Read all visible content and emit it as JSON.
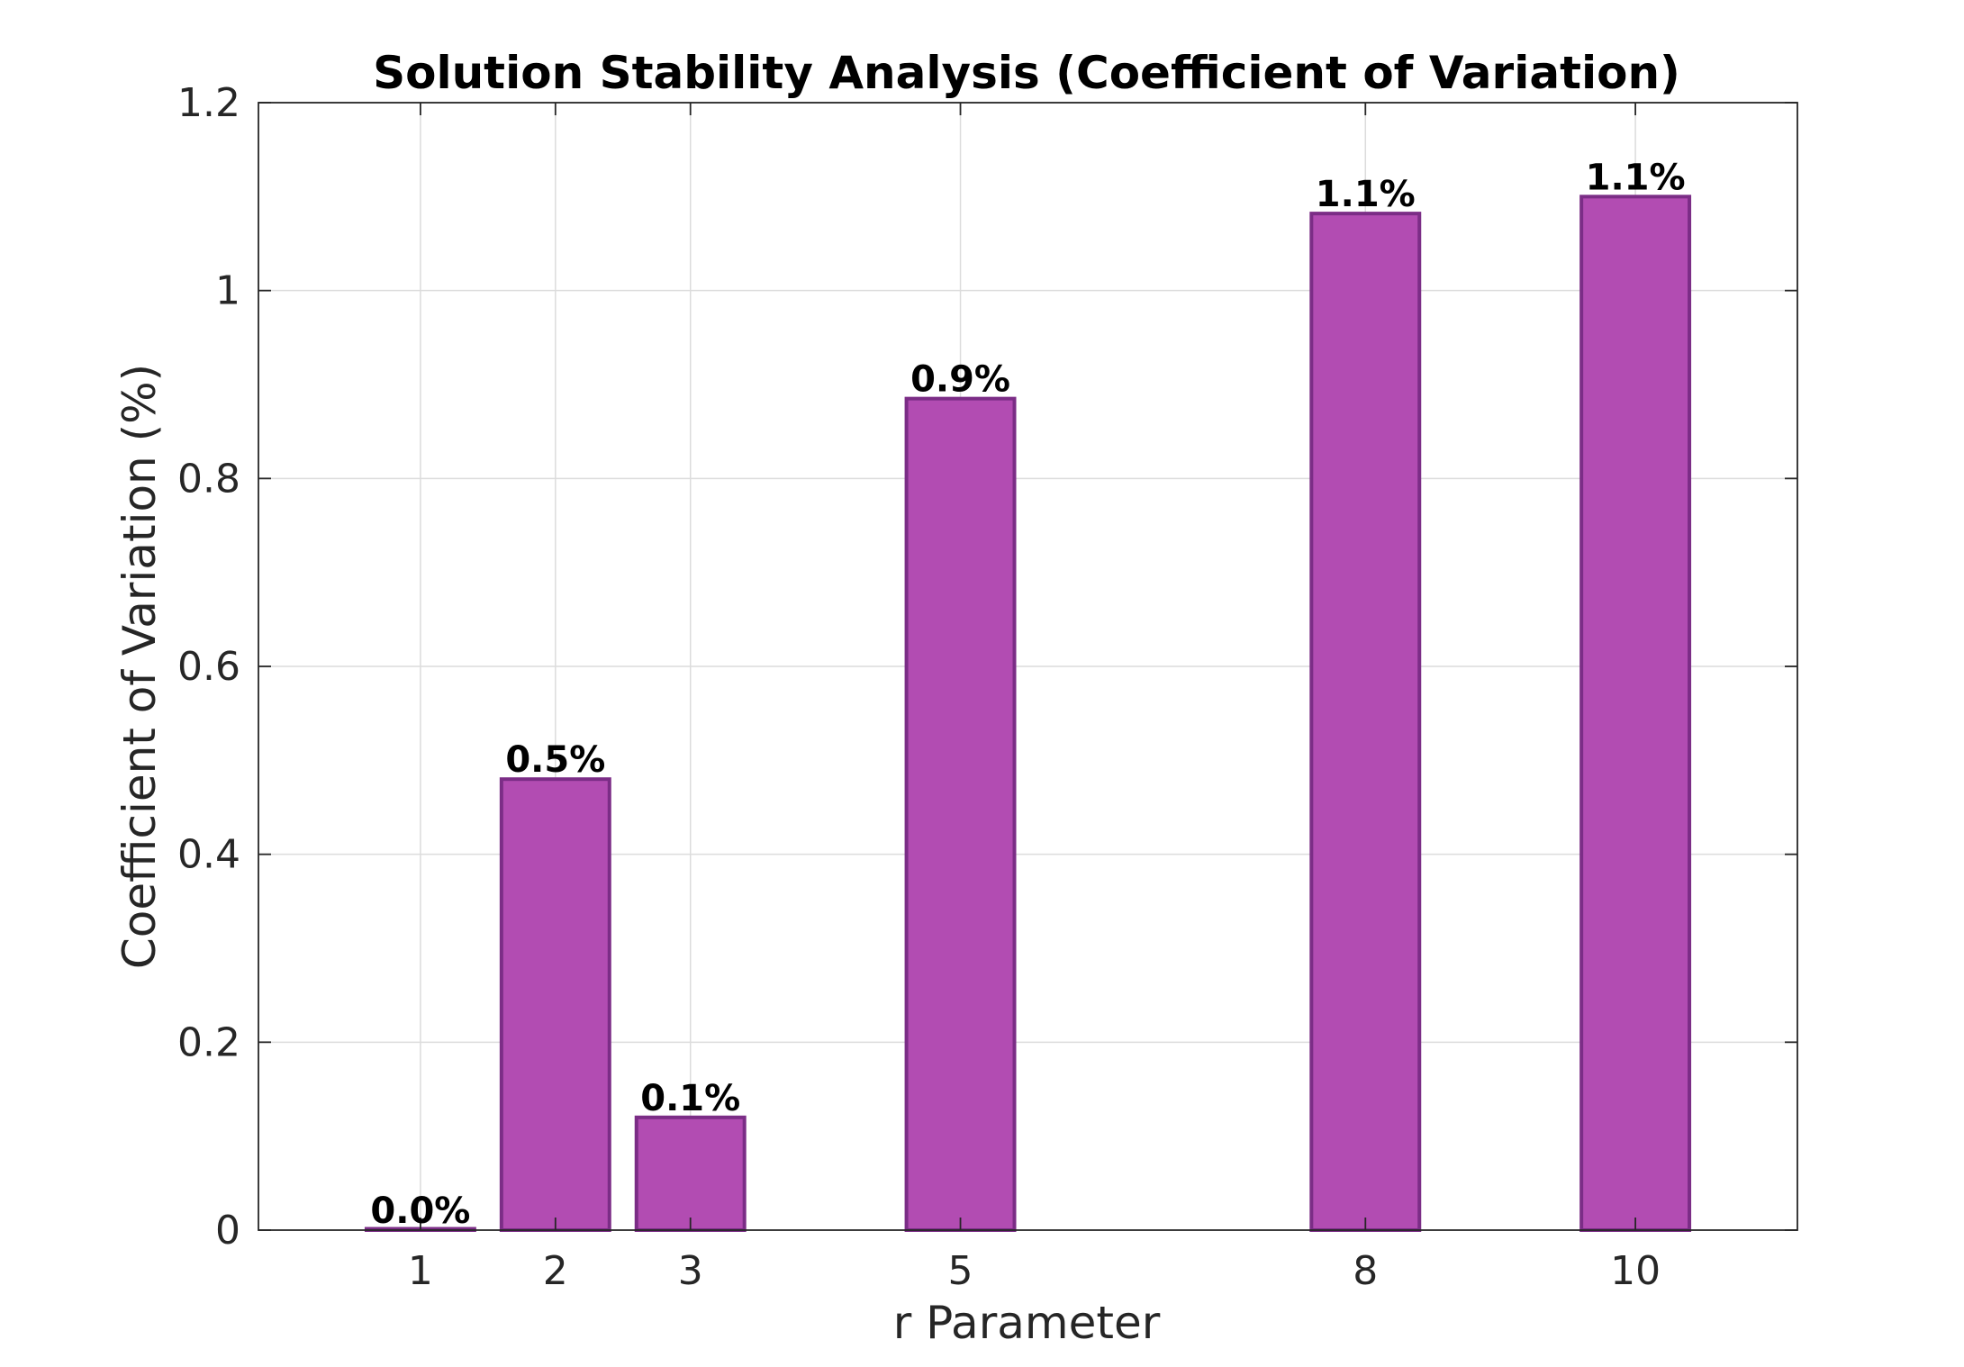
{
  "chart_data": {
    "type": "bar",
    "title": "Solution Stability Analysis (Coefficient of Variation)",
    "xlabel": "r Parameter",
    "ylabel": "Coefficient of Variation (%)",
    "x": [
      1,
      2,
      3,
      5,
      8,
      10
    ],
    "x_tick_labels": [
      "1",
      "2",
      "3",
      "5",
      "8",
      "10"
    ],
    "values": [
      0.0,
      0.48,
      0.12,
      0.885,
      1.082,
      1.1
    ],
    "data_labels": [
      "0.0%",
      "0.5%",
      "0.1%",
      "0.9%",
      "1.1%",
      "1.1%"
    ],
    "xlim": [
      -0.2,
      11.2
    ],
    "ylim": [
      0,
      1.2
    ],
    "y_ticks": [
      0,
      0.2,
      0.4,
      0.6,
      0.8,
      1,
      1.2
    ],
    "y_tick_labels": [
      "0",
      "0.2",
      "0.4",
      "0.6",
      "0.8",
      "1",
      "1.2"
    ],
    "bar_width": 0.8,
    "grid": true,
    "colors": {
      "bar_fill": "#b24cb2",
      "bar_edge": "#7b2d86"
    }
  }
}
